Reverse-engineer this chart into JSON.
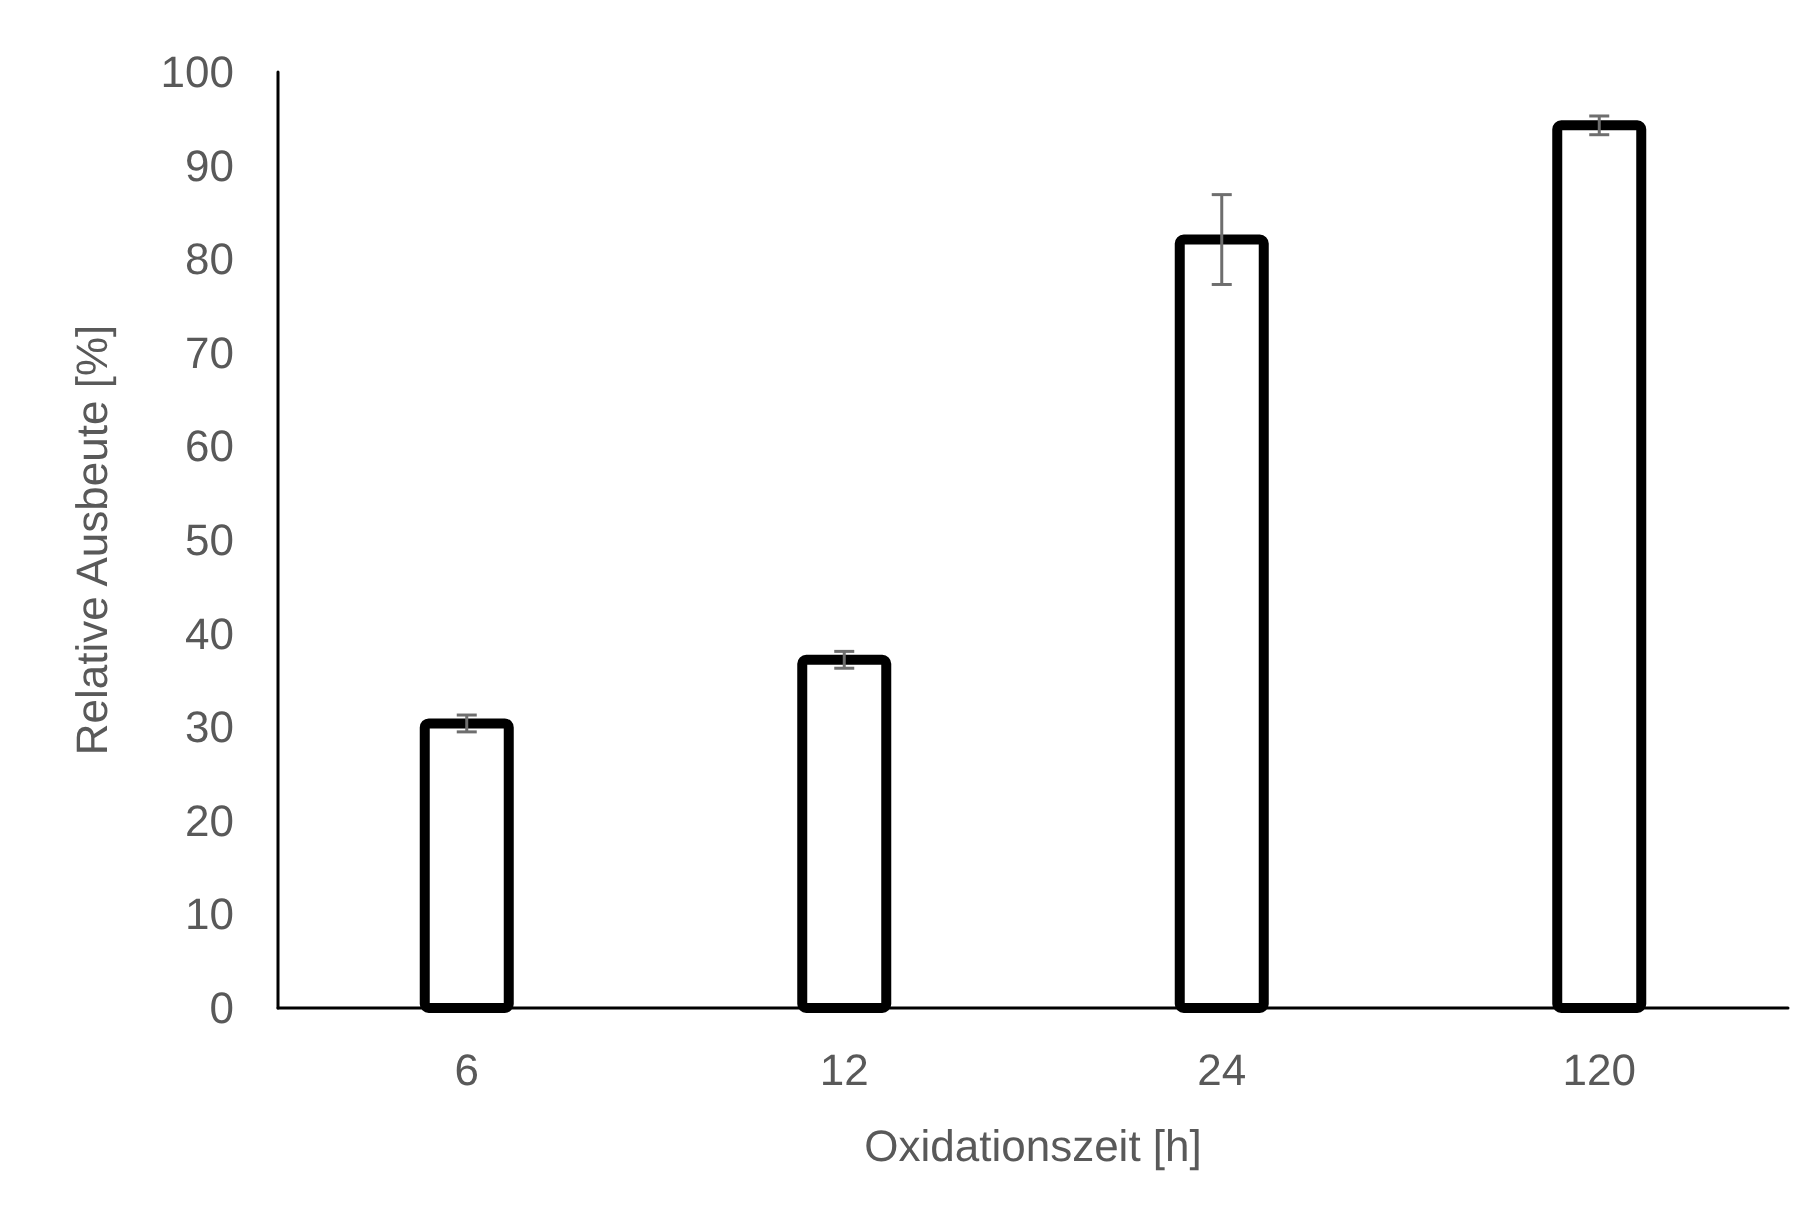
{
  "chart_data": {
    "type": "bar",
    "xlabel": "Oxidationszeit [h]",
    "ylabel": "Relative Ausbeute [%]",
    "categories": [
      "6",
      "12",
      "24",
      "120"
    ],
    "values": [
      30.4,
      37.2,
      82.1,
      94.3
    ],
    "errors": [
      0.9,
      0.9,
      4.8,
      1.0
    ],
    "color": "#ffffff",
    "ylim": [
      0,
      100
    ],
    "yticks": [
      0,
      10,
      20,
      30,
      40,
      50,
      60,
      70,
      80,
      90,
      100
    ],
    "grid": false
  }
}
